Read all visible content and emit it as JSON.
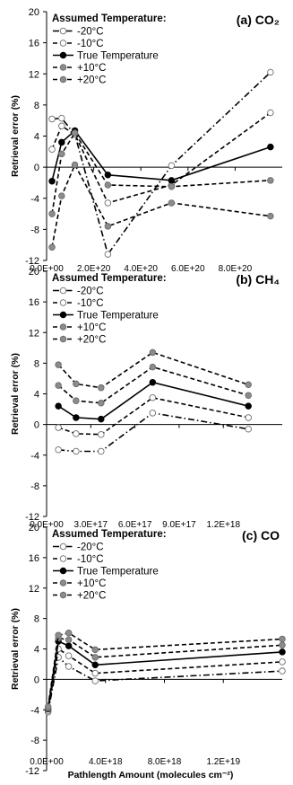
{
  "figure": {
    "y_label": "Retrieval error (%)",
    "x_label": "Pathlength Amount (molecules cm⁻²)",
    "legend_title": "Assumed Temperature:"
  },
  "chart_data": [
    {
      "type": "line",
      "title": "(a) CO₂",
      "ylabel": "Retrieval error (%)",
      "xlabel": "",
      "xlim": [
        0,
        1e+21
      ],
      "ylim": [
        -12,
        20
      ],
      "x_ticks": [
        0,
        2e+20,
        4e+20,
        6e+20,
        8e+20
      ],
      "x_tick_labels": [
        "0.0E+00",
        "2.0E+20",
        "4.0E+20",
        "6.0E+20",
        "8.0E+20"
      ],
      "y_ticks": [
        -12,
        -8,
        -4,
        0,
        4,
        8,
        12,
        16,
        20
      ],
      "legend_position": "top-left",
      "grid": false,
      "series": [
        {
          "name": "-20°C",
          "style": "dashdot",
          "marker": "open",
          "x": [
            2.3e+19,
            6.4e+19,
            1.2e+20,
            2.6e+20,
            5.3e+20,
            9.5e+20
          ],
          "y": [
            6.2,
            6.3,
            4.2,
            -11.2,
            0.2,
            12.2
          ]
        },
        {
          "name": "-10°C",
          "style": "dash",
          "marker": "open",
          "x": [
            2.3e+19,
            6.4e+19,
            1.2e+20,
            2.6e+20,
            5.3e+20,
            9.5e+20
          ],
          "y": [
            2.3,
            5.3,
            4.2,
            -4.6,
            -2.3,
            7.0
          ]
        },
        {
          "name": "True Temperature",
          "style": "solid",
          "marker": "filled-black",
          "x": [
            2.3e+19,
            6.4e+19,
            1.2e+20,
            2.6e+20,
            5.3e+20,
            9.5e+20
          ],
          "y": [
            -1.8,
            3.2,
            4.7,
            -1.0,
            -1.7,
            2.6
          ]
        },
        {
          "name": "+10°C",
          "style": "dash",
          "marker": "filled-gray",
          "x": [
            2.3e+19,
            6.4e+19,
            1.2e+20,
            2.6e+20,
            5.3e+20,
            9.5e+20
          ],
          "y": [
            -6.0,
            1.7,
            4.4,
            -2.3,
            -2.5,
            -1.7
          ]
        },
        {
          "name": "+20°C",
          "style": "dash",
          "marker": "filled-gray",
          "x": [
            2.3e+19,
            6.4e+19,
            1.2e+20,
            2.6e+20,
            5.3e+20,
            9.5e+20
          ],
          "y": [
            -10.3,
            -3.7,
            0.3,
            -7.6,
            -4.6,
            -6.3
          ]
        }
      ]
    },
    {
      "type": "line",
      "title": "(b) CH₄",
      "ylabel": "Retrieval error (%)",
      "xlabel": "",
      "xlim": [
        0,
        1.6e+18
      ],
      "ylim": [
        -12,
        20
      ],
      "x_ticks": [
        0,
        3e+17,
        6e+17,
        9e+17,
        1.2e+18
      ],
      "x_tick_labels": [
        "0.0E+00",
        "3.0E+17",
        "6.0E+17",
        "9.0E+17",
        "1.2E+18"
      ],
      "y_ticks": [
        -12,
        -8,
        -4,
        0,
        4,
        8,
        12,
        16,
        20
      ],
      "legend_position": "top-left",
      "grid": false,
      "series": [
        {
          "name": "-20°C",
          "style": "dashdot",
          "marker": "open",
          "x": [
            8e+16,
            2e+17,
            3.7e+17,
            7.2e+17,
            1.37e+18
          ],
          "y": [
            -3.3,
            -3.5,
            -3.5,
            1.5,
            -0.6
          ]
        },
        {
          "name": "-10°C",
          "style": "dash",
          "marker": "open",
          "x": [
            8e+16,
            2e+17,
            3.7e+17,
            7.2e+17,
            1.37e+18
          ],
          "y": [
            -0.4,
            -1.2,
            -1.3,
            3.5,
            0.9
          ]
        },
        {
          "name": "True Temperature",
          "style": "solid",
          "marker": "filled-black",
          "x": [
            8e+16,
            2e+17,
            3.7e+17,
            7.2e+17,
            1.37e+18
          ],
          "y": [
            2.4,
            0.9,
            0.7,
            5.5,
            2.4
          ]
        },
        {
          "name": "+10°C",
          "style": "dash",
          "marker": "filled-gray",
          "x": [
            8e+16,
            2e+17,
            3.7e+17,
            7.2e+17,
            1.37e+18
          ],
          "y": [
            5.1,
            3.1,
            2.8,
            7.5,
            3.8
          ]
        },
        {
          "name": "+20°C",
          "style": "dash",
          "marker": "filled-gray",
          "x": [
            8e+16,
            2e+17,
            3.7e+17,
            7.2e+17,
            1.37e+18
          ],
          "y": [
            7.8,
            5.3,
            4.8,
            9.4,
            5.2
          ]
        }
      ]
    },
    {
      "type": "line",
      "title": "(c) CO",
      "ylabel": "Retrieval error (%)",
      "xlabel": "Pathlength Amount (molecules cm⁻²)",
      "xlim": [
        0,
        1.6e+19
      ],
      "ylim": [
        -12,
        20
      ],
      "x_ticks": [
        0,
        4e+18,
        8e+18,
        1.2e+19
      ],
      "x_tick_labels": [
        "0.0E+00",
        "4.0E+18",
        "8.0E+18",
        "1.2E+19"
      ],
      "y_ticks": [
        -12,
        -8,
        -4,
        0,
        4,
        8,
        12,
        16,
        20
      ],
      "legend_position": "top-left",
      "grid": false,
      "series": [
        {
          "name": "-20°C",
          "style": "dashdot",
          "marker": "open",
          "x": [
            1e+17,
            8e+17,
            1.5e+18,
            3.3e+18,
            1.6e+19
          ],
          "y": [
            -4.3,
            2.9,
            1.7,
            -0.2,
            1.1
          ]
        },
        {
          "name": "-10°C",
          "style": "dash",
          "marker": "open",
          "x": [
            1e+17,
            8e+17,
            1.5e+18,
            3.3e+18,
            1.6e+19
          ],
          "y": [
            -4.1,
            4.0,
            3.1,
            0.8,
            2.3
          ]
        },
        {
          "name": "True Temperature",
          "style": "solid",
          "marker": "filled-black",
          "x": [
            1e+17,
            8e+17,
            1.5e+18,
            3.3e+18,
            1.6e+19
          ],
          "y": [
            -3.9,
            5.0,
            4.4,
            1.9,
            3.6
          ]
        },
        {
          "name": "+10°C",
          "style": "dash",
          "marker": "filled-gray",
          "x": [
            1e+17,
            8e+17,
            1.5e+18,
            3.3e+18,
            1.6e+19
          ],
          "y": [
            -3.8,
            5.4,
            5.2,
            2.9,
            4.5
          ]
        },
        {
          "name": "+20°C",
          "style": "dash",
          "marker": "filled-gray",
          "x": [
            1e+17,
            8e+17,
            1.5e+18,
            3.3e+18,
            1.6e+19
          ],
          "y": [
            -3.6,
            5.8,
            6.1,
            3.9,
            5.3
          ]
        }
      ]
    }
  ]
}
